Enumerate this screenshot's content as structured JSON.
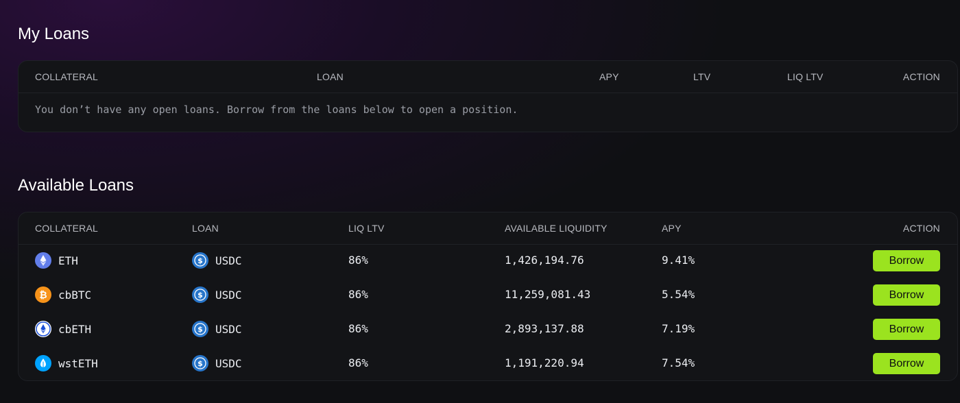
{
  "my_loans": {
    "title": "My Loans",
    "columns": {
      "collateral": "COLLATERAL",
      "loan": "LOAN",
      "apy": "APY",
      "ltv": "LTV",
      "liq_ltv": "LIQ LTV",
      "action": "ACTION"
    },
    "empty_message": "You don’t have any open loans. Borrow from the loans below to open a position."
  },
  "available_loans": {
    "title": "Available Loans",
    "columns": {
      "collateral": "COLLATERAL",
      "loan": "LOAN",
      "liq_ltv": "LIQ LTV",
      "available_liquidity": "AVAILABLE LIQUIDITY",
      "apy": "APY",
      "action": "ACTION"
    },
    "rows": [
      {
        "collateral": "ETH",
        "collateral_icon": "eth-icon",
        "loan": "USDC",
        "loan_icon": "usdc-icon",
        "liq_ltv": "86%",
        "liquidity": "1,426,194.76",
        "apy": "9.41%",
        "action": "Borrow"
      },
      {
        "collateral": "cbBTC",
        "collateral_icon": "cbbtc-icon",
        "loan": "USDC",
        "loan_icon": "usdc-icon",
        "liq_ltv": "86%",
        "liquidity": "11,259,081.43",
        "apy": "5.54%",
        "action": "Borrow"
      },
      {
        "collateral": "cbETH",
        "collateral_icon": "cbeth-icon",
        "loan": "USDC",
        "loan_icon": "usdc-icon",
        "liq_ltv": "86%",
        "liquidity": "2,893,137.88",
        "apy": "7.19%",
        "action": "Borrow"
      },
      {
        "collateral": "wstETH",
        "collateral_icon": "wsteth-icon",
        "loan": "USDC",
        "loan_icon": "usdc-icon",
        "liq_ltv": "86%",
        "liquidity": "1,191,220.94",
        "apy": "7.54%",
        "action": "Borrow"
      }
    ]
  },
  "colors": {
    "accent": "#9be31f",
    "panel": "#131417",
    "eth": "#627eea",
    "btc": "#f7931a",
    "usdc": "#2775ca",
    "wsteth": "#00a3ff"
  }
}
